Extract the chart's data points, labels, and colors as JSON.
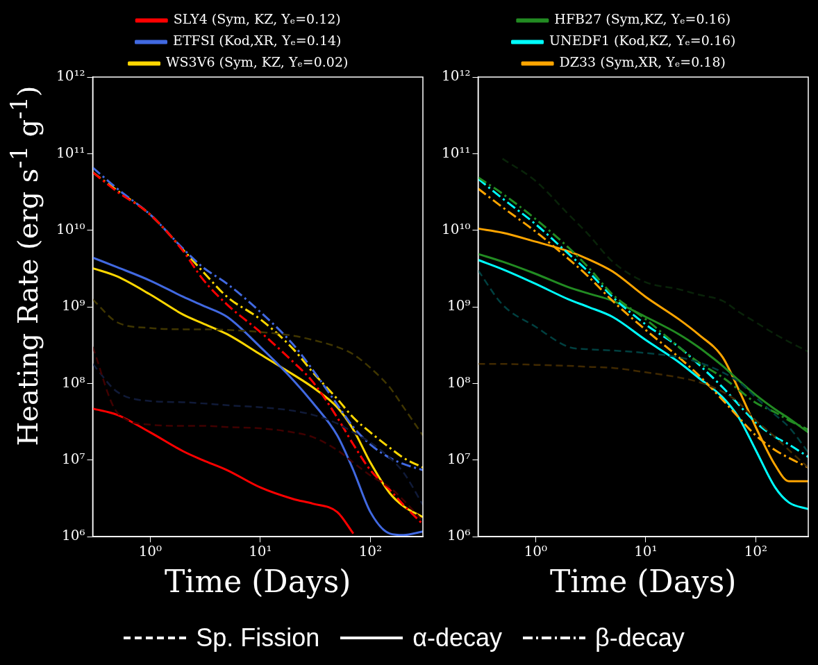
{
  "chart_data": [
    {
      "type": "line",
      "xlabel": "Time (Days)",
      "ylabel": "Heating Rate (erg s$^{-1}$ g$^{-1}$)",
      "log": "xy",
      "grid": false,
      "legend": "top",
      "marker": "none",
      "x": [
        0.3,
        0.5,
        1,
        2,
        3,
        5,
        10,
        20,
        30,
        50,
        70,
        100,
        150,
        200,
        300
      ],
      "xlim": [
        0.3,
        300
      ],
      "ylim": [
        1000000.0,
        1000000000000.0
      ],
      "xticks": [
        {
          "value": 1,
          "label": "10⁰"
        },
        {
          "value": 10,
          "label": "10¹"
        },
        {
          "value": 100,
          "label": "10²"
        }
      ],
      "yticks": [
        {
          "value": 1000000.0,
          "label": "10⁶"
        },
        {
          "value": 10000000.0,
          "label": "10⁷"
        },
        {
          "value": 100000000.0,
          "label": "10⁸"
        },
        {
          "value": 1000000000.0,
          "label": "10⁹"
        },
        {
          "value": 10000000000.0,
          "label": "10¹⁰"
        },
        {
          "value": 100000000000.0,
          "label": "10¹¹"
        },
        {
          "value": 1000000000000.0,
          "label": "10¹²"
        }
      ],
      "series": [
        {
          "color": "#400000",
          "line_style": "dashed",
          "values": [
            300000000.0,
            42000000.0,
            29000000.0,
            28000000.0,
            28000000.0,
            27000000.0,
            26000000.0,
            23000000.0,
            20000000.0,
            13500000.0,
            9300000.0,
            6300000.0,
            4400000.0,
            3000000.0,
            1600000.0
          ]
        },
        {
          "color": "#101a38",
          "line_style": "dashed",
          "values": [
            180000000.0,
            78000000.0,
            59000000.0,
            57000000.0,
            55000000.0,
            52000000.0,
            49000000.0,
            44000000.0,
            39000000.0,
            30000000.0,
            23000000.0,
            17000000.0,
            10700000.0,
            6900000.0,
            2600000.0
          ]
        },
        {
          "color": "#403600",
          "line_style": "dashed",
          "values": [
            1250000000.0,
            630000000.0,
            530000000.0,
            510000000.0,
            510000000.0,
            500000000.0,
            470000000.0,
            420000000.0,
            370000000.0,
            300000000.0,
            240000000.0,
            160000000.0,
            89000000.0,
            49000000.0,
            21000000.0
          ]
        },
        {
          "color": "#ff0000",
          "line_style": "dashdot",
          "values": [
            57000000000.0,
            32000000000.0,
            16000000000.0,
            5300000000.0,
            2300000000.0,
            1070000000.0,
            470000000.0,
            190000000.0,
            105000000.0,
            36000000.0,
            16000000.0,
            7400000.0,
            4100000.0,
            2600000.0,
            1450000.0
          ]
        },
        {
          "color": "#4169e1",
          "line_style": "dashdot",
          "values": [
            66000000000.0,
            35000000000.0,
            16000000000.0,
            5700000000.0,
            3300000000.0,
            2000000000.0,
            860000000.0,
            320000000.0,
            150000000.0,
            53000000.0,
            27000000.0,
            16000000.0,
            10700000.0,
            8900000.0,
            7400000.0
          ]
        },
        {
          "color": "#ffd700",
          "line_style": "dashdot",
          "values": [
            57000000000.0,
            33000000000.0,
            16000000000.0,
            5500000000.0,
            2900000000.0,
            1350000000.0,
            690000000.0,
            280000000.0,
            140000000.0,
            63000000.0,
            36000000.0,
            23000000.0,
            14500000.0,
            10700000.0,
            8000000.0
          ]
        },
        {
          "name": "SLY4 (Sym, KZ, Yₑ=0.12)",
          "color": "#ff0000",
          "line_style": "solid",
          "values": [
            47000000.0,
            39000000.0,
            23000000.0,
            13000000.0,
            10000000.0,
            7400000.0,
            4400000.0,
            3100000.0,
            2700000.0,
            2100000.0,
            1100000.0,
            null,
            null,
            null,
            null
          ]
        },
        {
          "name": "ETFSI (Kod,XR, Yₑ=0.14)",
          "color": "#4169e1",
          "line_style": "solid",
          "values": [
            4400000000.0,
            3300000000.0,
            2200000000.0,
            1350000000.0,
            1040000000.0,
            740000000.0,
            300000000.0,
            110000000.0,
            56000000.0,
            21000000.0,
            7400000.0,
            2100000.0,
            1100000.0,
            1050000.0,
            1170000.0
          ]
        },
        {
          "name": "WS3V6 (Sym, KZ, Yₑ=0.02)",
          "color": "#ffd700",
          "line_style": "solid",
          "values": [
            3200000000.0,
            2500000000.0,
            1450000000.0,
            790000000.0,
            610000000.0,
            440000000.0,
            240000000.0,
            130000000.0,
            89000000.0,
            49000000.0,
            25000000.0,
            9300000.0,
            3700000.0,
            2500000.0,
            1800000.0
          ]
        }
      ]
    },
    {
      "type": "line",
      "xlabel": "Time (Days)",
      "log": "xy",
      "grid": false,
      "legend": "top",
      "marker": "none",
      "x": [
        0.3,
        0.5,
        1,
        2,
        3,
        5,
        10,
        20,
        30,
        50,
        70,
        100,
        150,
        200,
        300
      ],
      "xlim": [
        0.3,
        300
      ],
      "ylim": [
        1000000.0,
        1000000000000.0
      ],
      "xticks": [
        {
          "value": 1,
          "label": "10⁰"
        },
        {
          "value": 10,
          "label": "10¹"
        },
        {
          "value": 100,
          "label": "10²"
        }
      ],
      "yticks": [
        {
          "value": 1000000.0,
          "label": "10⁶"
        },
        {
          "value": 10000000.0,
          "label": "10⁷"
        },
        {
          "value": 100000000.0,
          "label": "10⁸"
        },
        {
          "value": 1000000000.0,
          "label": "10⁹"
        },
        {
          "value": 10000000000.0,
          "label": "10¹⁰"
        },
        {
          "value": 100000000000.0,
          "label": "10¹¹"
        },
        {
          "value": 1000000000000.0,
          "label": "10¹²"
        }
      ],
      "series": [
        {
          "color": "#092309",
          "line_style": "dashed",
          "values": [
            null,
            86000000000.0,
            44000000000.0,
            16000000000.0,
            8900000000.0,
            3900000000.0,
            2100000000.0,
            1700000000.0,
            1450000000.0,
            1200000000.0,
            860000000.0,
            630000000.0,
            440000000.0,
            350000000.0,
            260000000.0
          ]
        },
        {
          "color": "#004040",
          "line_style": "dashed",
          "values": [
            3000000000.0,
            1070000000.0,
            550000000.0,
            300000000.0,
            280000000.0,
            270000000.0,
            250000000.0,
            220000000.0,
            190000000.0,
            140000000.0,
            105000000.0,
            66000000.0,
            39000000.0,
            27000000.0,
            12600000.0
          ]
        },
        {
          "color": "#402900",
          "line_style": "dashed",
          "values": [
            180000000.0,
            180000000.0,
            175000000.0,
            170000000.0,
            165000000.0,
            160000000.0,
            140000000.0,
            120000000.0,
            105000000.0,
            78000000.0,
            56000000.0,
            33000000.0,
            20000000.0,
            13500000.0,
            8000000.0
          ]
        },
        {
          "color": "#228b22",
          "line_style": "dashdot",
          "values": [
            49000000000.0,
            30000000000.0,
            14000000000.0,
            5900000000.0,
            3300000000.0,
            1450000000.0,
            690000000.0,
            300000000.0,
            190000000.0,
            120000000.0,
            83000000.0,
            56000000.0,
            42000000.0,
            33000000.0,
            25000000.0
          ]
        },
        {
          "color": "#00ffff",
          "line_style": "dashdot",
          "values": [
            47000000000.0,
            26000000000.0,
            12000000000.0,
            4900000000.0,
            2900000000.0,
            1350000000.0,
            590000000.0,
            300000000.0,
            180000000.0,
            89000000.0,
            53000000.0,
            31000000.0,
            20000000.0,
            16000000.0,
            11000000.0
          ]
        },
        {
          "color": "#ffa500",
          "line_style": "dashdot",
          "values": [
            35000000000.0,
            20000000000.0,
            9600000000.0,
            4200000000.0,
            2500000000.0,
            1200000000.0,
            500000000.0,
            220000000.0,
            130000000.0,
            61000000.0,
            36000000.0,
            21000000.0,
            13500000.0,
            10700000.0,
            8000000.0
          ]
        },
        {
          "name": "HFB27 (Sym,KZ, Yₑ=0.16)",
          "color": "#228b22",
          "line_style": "solid",
          "values": [
            4900000000.0,
            3900000000.0,
            2700000000.0,
            1800000000.0,
            1500000000.0,
            1200000000.0,
            740000000.0,
            440000000.0,
            300000000.0,
            170000000.0,
            110000000.0,
            71000000.0,
            46000000.0,
            35000000.0,
            23000000.0
          ]
        },
        {
          "name": "UNEDF1 (Kod,KZ, Yₑ=0.16)",
          "color": "#00ffff",
          "line_style": "solid",
          "values": [
            4100000000.0,
            3100000000.0,
            2000000000.0,
            1250000000.0,
            1000000000.0,
            740000000.0,
            370000000.0,
            190000000.0,
            120000000.0,
            66000000.0,
            36000000.0,
            13500000.0,
            4400000.0,
            2800000.0,
            2300000.0
          ]
        },
        {
          "name": "DZ33 (Sym,XR, Yₑ=0.18)",
          "color": "#ffa500",
          "line_style": "solid",
          "values": [
            10500000000.0,
            9300000000.0,
            7100000000.0,
            5300000000.0,
            4200000000.0,
            2900000000.0,
            1350000000.0,
            690000000.0,
            440000000.0,
            220000000.0,
            83000000.0,
            27000000.0,
            8600000.0,
            5300000.0,
            5300000.0
          ]
        }
      ]
    },
    {
      "type": "other",
      "annotations": [
        "Sp. Fission",
        "α-decay",
        "β-decay"
      ]
    }
  ]
}
